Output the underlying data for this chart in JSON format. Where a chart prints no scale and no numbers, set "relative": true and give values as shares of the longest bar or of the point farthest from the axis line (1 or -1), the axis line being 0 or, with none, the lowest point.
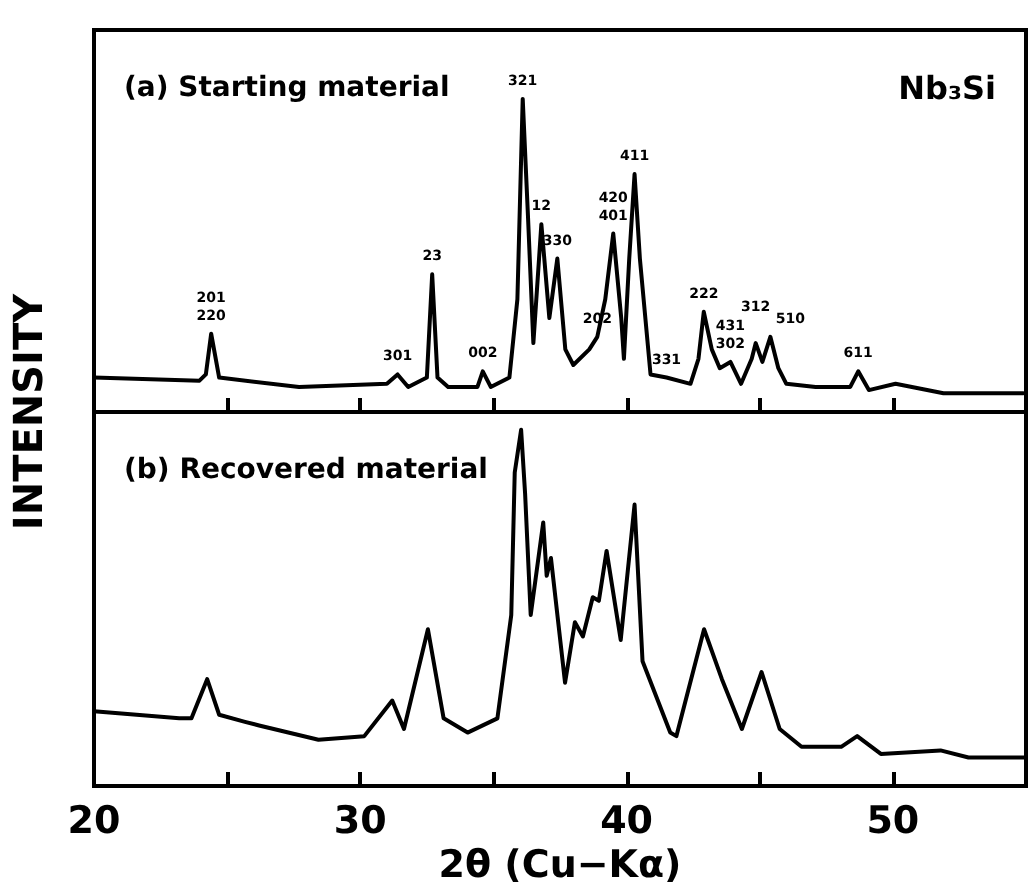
{
  "chart_data": [
    {
      "type": "line",
      "relative": true,
      "ylabel": "INTENSITY",
      "xlim": [
        20,
        55
      ],
      "tick_labels": false,
      "xticks": [
        20,
        {
          "value": 25,
          "label": null
        },
        30,
        {
          "value": 35,
          "label": null
        },
        40,
        {
          "value": 45,
          "label": null
        },
        50
      ],
      "series": [
        {
          "color": "#000000",
          "x": [
            20,
            23.96,
            24.2,
            24.4,
            24.7,
            27.7,
            31.0,
            31.4,
            31.8,
            32.5,
            32.7,
            32.9,
            33.3,
            34.4,
            34.6,
            34.9,
            35.6,
            35.9,
            36.1,
            36.3,
            36.5,
            36.8,
            37.1,
            37.4,
            37.7,
            38.0,
            38.6,
            38.9,
            39.2,
            39.5,
            39.8,
            39.9,
            40.1,
            40.3,
            40.5,
            40.9,
            41.5,
            42.4,
            42.7,
            42.9,
            43.2,
            43.5,
            43.9,
            44.3,
            44.7,
            44.85,
            45.1,
            45.4,
            45.7,
            46.0,
            47.1,
            48.4,
            48.7,
            49.1,
            50.1,
            51.9,
            54.9
          ],
          "values": [
            0.11,
            0.1,
            0.12,
            0.25,
            0.11,
            0.08,
            0.09,
            0.12,
            0.08,
            0.11,
            0.44,
            0.11,
            0.08,
            0.08,
            0.13,
            0.08,
            0.11,
            0.36,
            1.0,
            0.62,
            0.22,
            0.6,
            0.3,
            0.49,
            0.2,
            0.15,
            0.2,
            0.24,
            0.36,
            0.57,
            0.3,
            0.17,
            0.49,
            0.76,
            0.49,
            0.12,
            0.11,
            0.09,
            0.17,
            0.32,
            0.2,
            0.14,
            0.16,
            0.09,
            0.17,
            0.22,
            0.16,
            0.24,
            0.14,
            0.09,
            0.08,
            0.08,
            0.13,
            0.07,
            0.09,
            0.06,
            0.06
          ]
        }
      ],
      "annotations": [
        "(a) Starting material",
        "Nb₃Si",
        {
          "text": "201",
          "x": 24.4,
          "y": 0.25
        },
        {
          "text": "220",
          "x": 24.4,
          "y": 0.25
        },
        {
          "text": "301",
          "x": 31.4,
          "y": 0.12
        },
        {
          "text": "23",
          "x": 32.7,
          "y": 0.44
        },
        {
          "text": "002",
          "x": 34.6,
          "y": 0.13
        },
        {
          "text": "321",
          "x": 36.1,
          "y": 1.0
        },
        {
          "text": "12",
          "x": 36.8,
          "y": 0.6
        },
        {
          "text": "330",
          "x": 37.4,
          "y": 0.49
        },
        {
          "text": "202",
          "x": 38.9,
          "y": 0.24
        },
        {
          "text": "420",
          "x": 39.5,
          "y": 0.57
        },
        {
          "text": "401",
          "x": 39.5,
          "y": 0.57
        },
        {
          "text": "411",
          "x": 40.3,
          "y": 0.76
        },
        {
          "text": "331",
          "x": 41.5,
          "y": 0.11
        },
        {
          "text": "222",
          "x": 42.9,
          "y": 0.32
        },
        {
          "text": "431",
          "x": 43.9,
          "y": 0.16
        },
        {
          "text": "302",
          "x": 43.9,
          "y": 0.16
        },
        {
          "text": "312",
          "x": 44.85,
          "y": 0.22
        },
        {
          "text": "510",
          "x": 45.4,
          "y": 0.24
        },
        {
          "text": "611",
          "x": 48.7,
          "y": 0.13
        }
      ]
    },
    {
      "type": "line",
      "relative": true,
      "xlabel": "2θ (Cu−Kα)",
      "xlim": [
        20,
        55
      ],
      "tick_labels": "x",
      "xticks": [
        20,
        {
          "value": 25,
          "label": null
        },
        30,
        {
          "value": 35,
          "label": null
        },
        40,
        {
          "value": 45,
          "label": null
        },
        50
      ],
      "series": [
        {
          "color": "#000000",
          "x": [
            20,
            23.2,
            23.66,
            24.25,
            24.7,
            25.67,
            26.2,
            28.43,
            30.15,
            31.2,
            31.64,
            32.54,
            33.13,
            34.03,
            35.15,
            35.67,
            35.8,
            36.04,
            36.19,
            36.4,
            36.87,
            37.0,
            37.16,
            37.69,
            38.06,
            38.36,
            38.73,
            38.96,
            39.25,
            39.78,
            40.3,
            40.6,
            41.64,
            41.87,
            42.91,
            43.58,
            44.33,
            45.07,
            45.75,
            46.57,
            48.06,
            48.66,
            49.55,
            51.79,
            52.84,
            54.93
          ],
          "values": [
            0.21,
            0.19,
            0.19,
            0.3,
            0.2,
            0.18,
            0.17,
            0.13,
            0.14,
            0.24,
            0.16,
            0.44,
            0.19,
            0.15,
            0.19,
            0.48,
            0.88,
            1.0,
            0.82,
            0.48,
            0.74,
            0.59,
            0.64,
            0.29,
            0.46,
            0.42,
            0.53,
            0.52,
            0.66,
            0.41,
            0.79,
            0.35,
            0.15,
            0.14,
            0.44,
            0.3,
            0.16,
            0.32,
            0.16,
            0.11,
            0.11,
            0.14,
            0.09,
            0.1,
            0.08,
            0.08
          ]
        }
      ],
      "annotations": [
        "(b) Recovered material"
      ]
    }
  ]
}
